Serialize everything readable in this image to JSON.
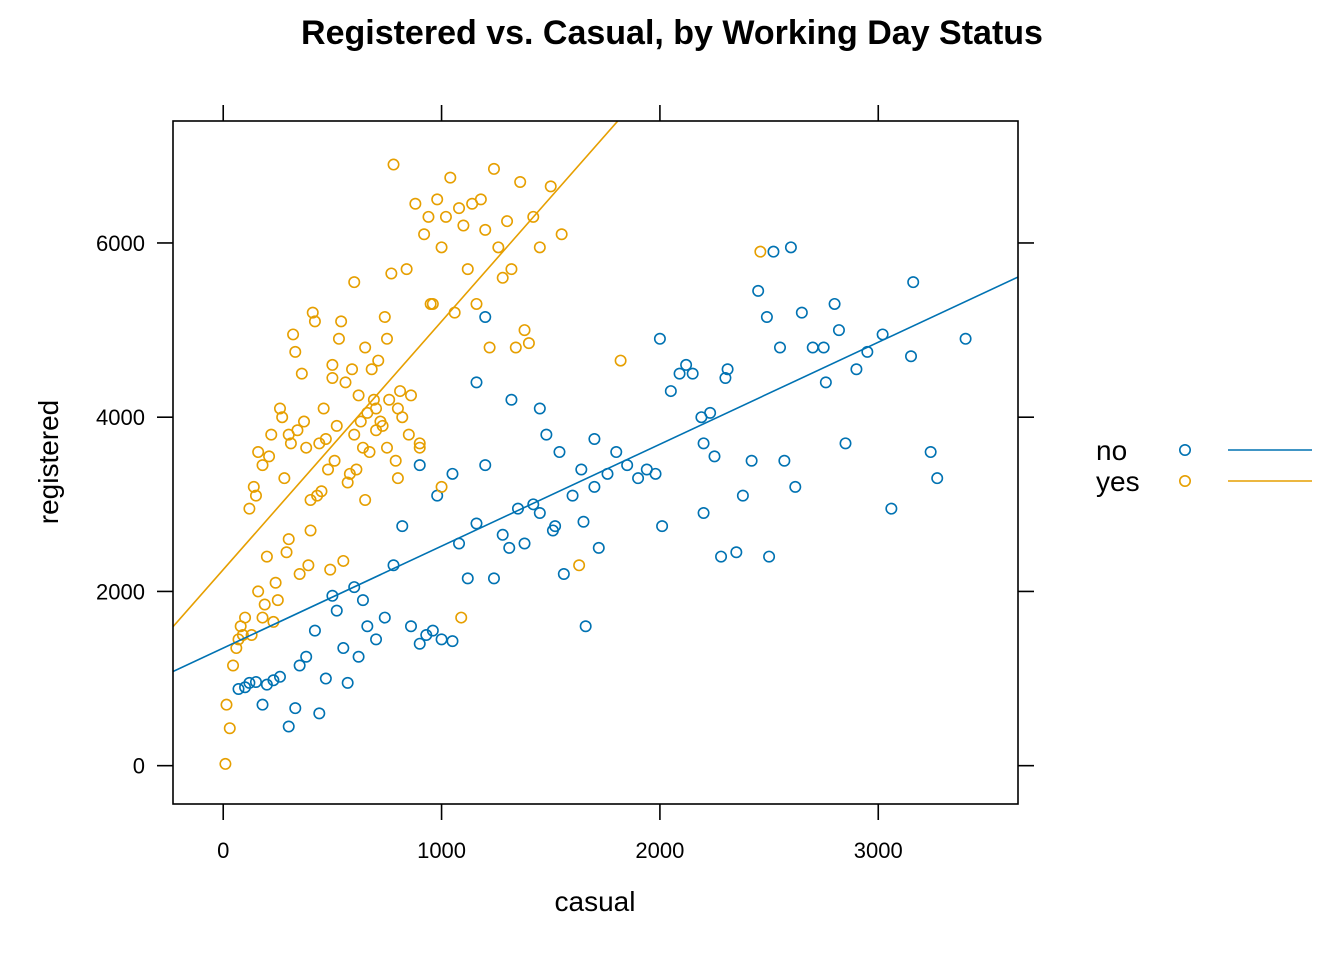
{
  "chart_data": {
    "type": "scatter",
    "title": "Registered vs. Casual, by Working Day Status",
    "xlabel": "casual",
    "ylabel": "registered",
    "xlim": [
      -230,
      3640
    ],
    "ylim": [
      -440,
      7400
    ],
    "x_ticks": [
      0,
      1000,
      2000,
      3000
    ],
    "y_ticks": [
      0,
      2000,
      4000,
      6000
    ],
    "grid": false,
    "legend_position": "right",
    "series": [
      {
        "name": "no",
        "color": "#0072B2",
        "trend": {
          "intercept": 1350,
          "slope": 1.17
        },
        "points": [
          [
            70,
            880
          ],
          [
            100,
            900
          ],
          [
            120,
            950
          ],
          [
            150,
            960
          ],
          [
            180,
            700
          ],
          [
            200,
            930
          ],
          [
            230,
            980
          ],
          [
            260,
            1020
          ],
          [
            300,
            450
          ],
          [
            330,
            660
          ],
          [
            350,
            1150
          ],
          [
            380,
            1250
          ],
          [
            420,
            1550
          ],
          [
            440,
            600
          ],
          [
            470,
            1000
          ],
          [
            500,
            1950
          ],
          [
            520,
            1780
          ],
          [
            550,
            1350
          ],
          [
            570,
            950
          ],
          [
            600,
            2050
          ],
          [
            620,
            1250
          ],
          [
            640,
            1900
          ],
          [
            660,
            1600
          ],
          [
            700,
            1450
          ],
          [
            740,
            1700
          ],
          [
            780,
            2300
          ],
          [
            820,
            2750
          ],
          [
            860,
            1600
          ],
          [
            900,
            1400
          ],
          [
            930,
            1500
          ],
          [
            960,
            1550
          ],
          [
            1000,
            1450
          ],
          [
            1050,
            1430
          ],
          [
            1080,
            2550
          ],
          [
            1120,
            2150
          ],
          [
            1160,
            2780
          ],
          [
            1200,
            3450
          ],
          [
            1240,
            2150
          ],
          [
            1280,
            2650
          ],
          [
            1310,
            2500
          ],
          [
            1350,
            2950
          ],
          [
            1380,
            2550
          ],
          [
            1420,
            3000
          ],
          [
            1450,
            2900
          ],
          [
            1480,
            3800
          ],
          [
            1510,
            2700
          ],
          [
            1540,
            3600
          ],
          [
            1560,
            2200
          ],
          [
            1600,
            3100
          ],
          [
            1640,
            3400
          ],
          [
            1660,
            1600
          ],
          [
            1700,
            3200
          ],
          [
            1720,
            2500
          ],
          [
            1760,
            3350
          ],
          [
            1800,
            3600
          ],
          [
            1850,
            3450
          ],
          [
            1900,
            3300
          ],
          [
            1940,
            3400
          ],
          [
            1980,
            3350
          ],
          [
            2010,
            2750
          ],
          [
            2050,
            4300
          ],
          [
            2090,
            4500
          ],
          [
            2120,
            4600
          ],
          [
            2150,
            4500
          ],
          [
            2190,
            4000
          ],
          [
            2200,
            3700
          ],
          [
            2230,
            4050
          ],
          [
            2250,
            3550
          ],
          [
            2280,
            2400
          ],
          [
            2310,
            4550
          ],
          [
            2350,
            2450
          ],
          [
            2380,
            3100
          ],
          [
            2420,
            3500
          ],
          [
            2450,
            5450
          ],
          [
            2490,
            5150
          ],
          [
            2520,
            5900
          ],
          [
            2550,
            4800
          ],
          [
            2570,
            3500
          ],
          [
            2600,
            5950
          ],
          [
            2620,
            3200
          ],
          [
            2650,
            5200
          ],
          [
            2700,
            4800
          ],
          [
            2760,
            4400
          ],
          [
            2800,
            5300
          ],
          [
            2820,
            5000
          ],
          [
            2850,
            3700
          ],
          [
            2900,
            4550
          ],
          [
            2950,
            4750
          ],
          [
            3020,
            4950
          ],
          [
            3060,
            2950
          ],
          [
            3150,
            4700
          ],
          [
            3160,
            5550
          ],
          [
            3240,
            3600
          ],
          [
            3270,
            3300
          ],
          [
            3400,
            4900
          ],
          [
            1200,
            5150
          ],
          [
            1160,
            4400
          ],
          [
            980,
            3100
          ],
          [
            900,
            3450
          ],
          [
            1050,
            3350
          ],
          [
            1700,
            3750
          ],
          [
            1650,
            2800
          ],
          [
            1520,
            2750
          ],
          [
            1450,
            4100
          ],
          [
            1320,
            4200
          ],
          [
            2000,
            4900
          ],
          [
            2300,
            4450
          ],
          [
            2200,
            2900
          ],
          [
            2500,
            2400
          ],
          [
            2750,
            4800
          ]
        ]
      },
      {
        "name": "yes",
        "color": "#E69F00",
        "trend": {
          "intercept": 2250,
          "slope": 2.85
        },
        "points": [
          [
            10,
            20
          ],
          [
            15,
            700
          ],
          [
            30,
            430
          ],
          [
            45,
            1150
          ],
          [
            60,
            1350
          ],
          [
            70,
            1450
          ],
          [
            80,
            1600
          ],
          [
            90,
            1500
          ],
          [
            100,
            1700
          ],
          [
            120,
            2950
          ],
          [
            140,
            3200
          ],
          [
            160,
            2000
          ],
          [
            180,
            3450
          ],
          [
            200,
            2400
          ],
          [
            220,
            3800
          ],
          [
            240,
            2100
          ],
          [
            260,
            4100
          ],
          [
            280,
            3300
          ],
          [
            300,
            2600
          ],
          [
            320,
            4950
          ],
          [
            340,
            3850
          ],
          [
            360,
            4500
          ],
          [
            380,
            3650
          ],
          [
            400,
            3050
          ],
          [
            420,
            5100
          ],
          [
            440,
            3700
          ],
          [
            460,
            4100
          ],
          [
            480,
            3400
          ],
          [
            500,
            4450
          ],
          [
            520,
            3900
          ],
          [
            540,
            5100
          ],
          [
            560,
            4400
          ],
          [
            580,
            3350
          ],
          [
            600,
            5550
          ],
          [
            620,
            4250
          ],
          [
            640,
            3650
          ],
          [
            660,
            4050
          ],
          [
            680,
            4550
          ],
          [
            700,
            3850
          ],
          [
            720,
            3950
          ],
          [
            740,
            5150
          ],
          [
            760,
            4200
          ],
          [
            780,
            6900
          ],
          [
            800,
            4100
          ],
          [
            820,
            4000
          ],
          [
            840,
            5700
          ],
          [
            860,
            4250
          ],
          [
            880,
            6450
          ],
          [
            900,
            3650
          ],
          [
            920,
            6100
          ],
          [
            940,
            6300
          ],
          [
            960,
            5300
          ],
          [
            980,
            6500
          ],
          [
            1000,
            5950
          ],
          [
            1020,
            6300
          ],
          [
            1040,
            6750
          ],
          [
            1060,
            5200
          ],
          [
            1080,
            6400
          ],
          [
            1100,
            6200
          ],
          [
            1120,
            5700
          ],
          [
            1140,
            6450
          ],
          [
            1160,
            5300
          ],
          [
            1180,
            6500
          ],
          [
            1200,
            6150
          ],
          [
            1220,
            4800
          ],
          [
            1240,
            6850
          ],
          [
            1260,
            5950
          ],
          [
            1280,
            5600
          ],
          [
            1300,
            6250
          ],
          [
            1320,
            5700
          ],
          [
            1340,
            4800
          ],
          [
            1360,
            6700
          ],
          [
            1380,
            5000
          ],
          [
            1400,
            4850
          ],
          [
            1420,
            6300
          ],
          [
            1450,
            5950
          ],
          [
            1500,
            6650
          ],
          [
            1550,
            6100
          ],
          [
            1820,
            4650
          ],
          [
            1630,
            2300
          ],
          [
            2460,
            5900
          ],
          [
            1090,
            1700
          ],
          [
            150,
            3100
          ],
          [
            180,
            1700
          ],
          [
            250,
            1900
          ],
          [
            300,
            3800
          ],
          [
            350,
            2200
          ],
          [
            400,
            2700
          ],
          [
            450,
            3150
          ],
          [
            500,
            4600
          ],
          [
            550,
            2350
          ],
          [
            600,
            3800
          ],
          [
            650,
            3050
          ],
          [
            700,
            4100
          ],
          [
            750,
            4900
          ],
          [
            800,
            3300
          ],
          [
            850,
            3800
          ],
          [
            900,
            3700
          ],
          [
            950,
            5300
          ],
          [
            1000,
            3200
          ],
          [
            130,
            1500
          ],
          [
            160,
            3600
          ],
          [
            190,
            1850
          ],
          [
            210,
            3550
          ],
          [
            230,
            1650
          ],
          [
            270,
            4000
          ],
          [
            290,
            2450
          ],
          [
            310,
            3700
          ],
          [
            330,
            4750
          ],
          [
            370,
            3950
          ],
          [
            390,
            2300
          ],
          [
            410,
            5200
          ],
          [
            430,
            3100
          ],
          [
            470,
            3750
          ],
          [
            490,
            2250
          ],
          [
            510,
            3500
          ],
          [
            530,
            4900
          ],
          [
            570,
            3250
          ],
          [
            590,
            4550
          ],
          [
            610,
            3400
          ],
          [
            630,
            3950
          ],
          [
            650,
            4800
          ],
          [
            670,
            3600
          ],
          [
            690,
            4200
          ],
          [
            710,
            4650
          ],
          [
            730,
            3900
          ],
          [
            750,
            3650
          ],
          [
            770,
            5650
          ],
          [
            790,
            3500
          ],
          [
            810,
            4300
          ]
        ]
      }
    ]
  }
}
